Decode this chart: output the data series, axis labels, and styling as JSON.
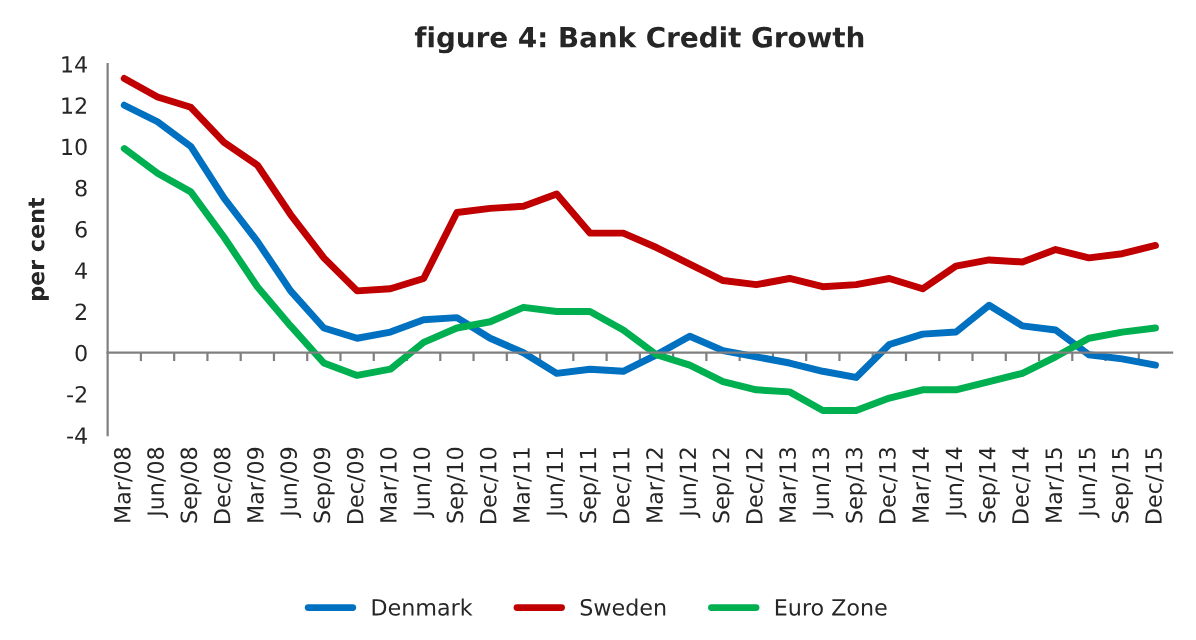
{
  "chart_data": {
    "type": "line",
    "title": "figure 4: Bank Credit Growth",
    "ylabel": "per cent",
    "categories": [
      "Mar/08",
      "Jun/08",
      "Sep/08",
      "Dec/08",
      "Mar/09",
      "Jun/09",
      "Sep/09",
      "Dec/09",
      "Mar/10",
      "Jun/10",
      "Sep/10",
      "Dec/10",
      "Mar/11",
      "Jun/11",
      "Sep/11",
      "Dec/11",
      "Mar/12",
      "Jun/12",
      "Sep/12",
      "Dec/12",
      "Mar/13",
      "Jun/13",
      "Sep/13",
      "Dec/13",
      "Mar/14",
      "Jun/14",
      "Sep/14",
      "Dec/14",
      "Mar/15",
      "Jun/15",
      "Sep/15",
      "Dec/15"
    ],
    "series": [
      {
        "name": "Denmark",
        "color": "#0070c0",
        "values": [
          12,
          11.2,
          10,
          7.5,
          5.4,
          3.0,
          1.2,
          0.7,
          1.0,
          1.6,
          1.7,
          0.7,
          0.0,
          -1.0,
          -0.8,
          -0.9,
          -0.1,
          0.8,
          0.1,
          -0.2,
          -0.5,
          -0.9,
          -1.2,
          0.4,
          0.9,
          1.0,
          2.3,
          1.3,
          1.1,
          -0.1,
          -0.3,
          -0.6
        ]
      },
      {
        "name": "Sweden",
        "color": "#c00000",
        "values": [
          13.3,
          12.4,
          11.9,
          10.2,
          9.1,
          6.7,
          4.6,
          3.0,
          3.1,
          3.6,
          6.8,
          7.0,
          7.1,
          7.7,
          5.8,
          5.8,
          5.1,
          4.3,
          3.5,
          3.3,
          3.6,
          3.2,
          3.3,
          3.6,
          3.1,
          4.2,
          4.5,
          4.4,
          5.0,
          4.6,
          4.8,
          5.2
        ]
      },
      {
        "name": "Euro Zone",
        "color": "#00b050",
        "values": [
          9.9,
          8.7,
          7.8,
          5.6,
          3.2,
          1.3,
          -0.5,
          -1.1,
          -0.8,
          0.5,
          1.2,
          1.5,
          2.2,
          2.0,
          2.0,
          1.1,
          -0.1,
          -0.6,
          -1.4,
          -1.8,
          -1.9,
          -2.8,
          -2.8,
          -2.2,
          -1.8,
          -1.8,
          -1.4,
          -1.0,
          -0.2,
          0.7,
          1.0,
          1.2
        ]
      }
    ],
    "ylim": [
      -4,
      14
    ],
    "yticks": [
      -4,
      -2,
      0,
      2,
      4,
      6,
      8,
      10,
      12,
      14
    ],
    "legend": "bottom",
    "marker": "none",
    "line_style": "solid"
  }
}
